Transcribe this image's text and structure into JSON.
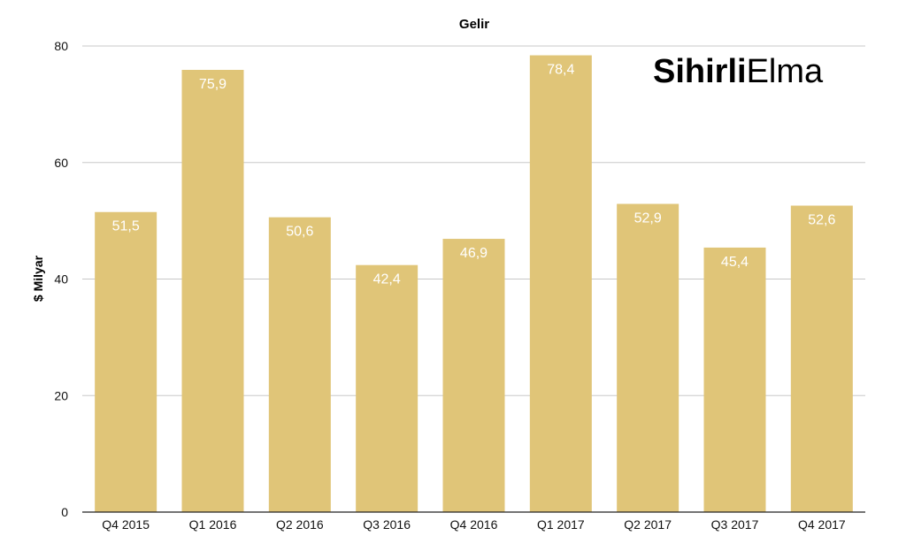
{
  "chart_data": {
    "type": "bar",
    "title": "Gelir",
    "xlabel": "",
    "ylabel": "$ Milyar",
    "categories": [
      "Q4 2015",
      "Q1 2016",
      "Q2 2016",
      "Q3 2016",
      "Q4 2016",
      "Q1 2017",
      "Q2 2017",
      "Q3 2017",
      "Q4 2017"
    ],
    "values": [
      51.5,
      75.9,
      50.6,
      42.4,
      46.9,
      78.4,
      52.9,
      45.4,
      52.6
    ],
    "value_labels": [
      "51,5",
      "75,9",
      "50,6",
      "42,4",
      "46,9",
      "78,4",
      "52,9",
      "45,4",
      "52,6"
    ],
    "ylim": [
      0,
      80
    ],
    "yticks": [
      0,
      20,
      40,
      60,
      80
    ],
    "grid": true,
    "bar_color": "#E0C578",
    "grid_color": "#C8C8C8"
  },
  "logo": {
    "bold": "Sihirli",
    "light": "Elma"
  }
}
